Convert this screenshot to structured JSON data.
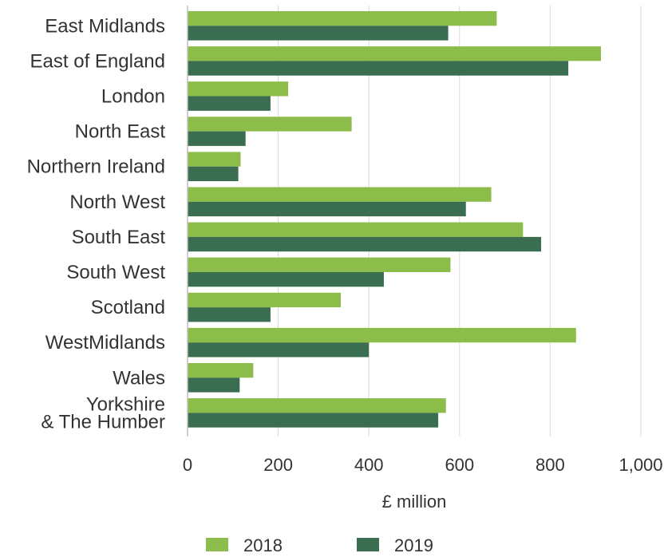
{
  "chart_data": {
    "type": "bar",
    "orientation": "horizontal",
    "categories": [
      "East Midlands",
      "East of England",
      "London",
      "North East",
      "Northern Ireland",
      "North West",
      "South East",
      "South West",
      "Scotland",
      "WestMidlands",
      "Wales",
      "Yorkshire\n& The Humber"
    ],
    "series": [
      {
        "name": "2018",
        "color": "#8cbc4a",
        "values": [
          682,
          912,
          222,
          362,
          117,
          670,
          740,
          580,
          338,
          857,
          145,
          570
        ]
      },
      {
        "name": "2019",
        "color": "#3b6e50",
        "values": [
          575,
          840,
          183,
          128,
          112,
          614,
          780,
          433,
          183,
          400,
          115,
          553
        ]
      }
    ],
    "xlabel": "£ million",
    "xlim": [
      0,
      1000
    ],
    "xticks": [
      0,
      200,
      400,
      600,
      800,
      1000
    ],
    "xtick_labels": [
      "0",
      "200",
      "400",
      "600",
      "800",
      "1,000"
    ],
    "grid": "vertical",
    "legend_position": "bottom"
  }
}
